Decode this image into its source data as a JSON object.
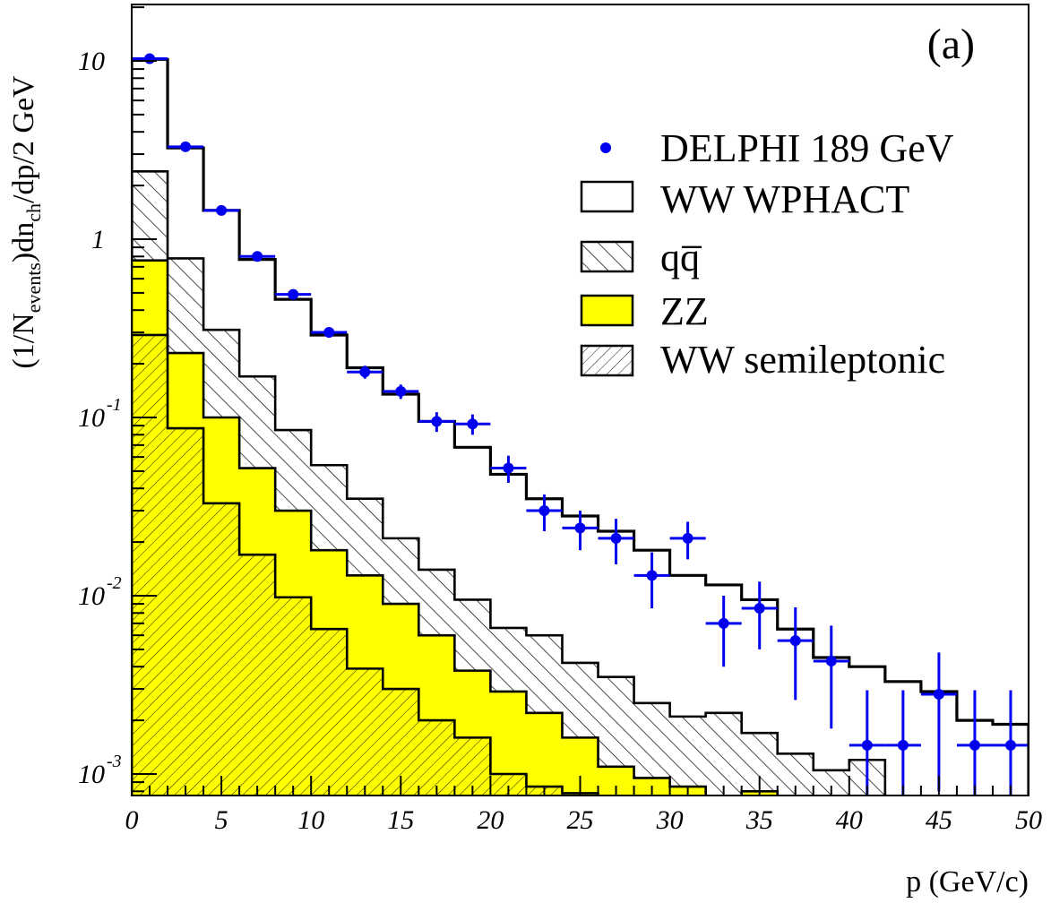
{
  "chart_data": {
    "type": "histogram",
    "panel_label": "(a)",
    "xlabel": "p (GeV/c)",
    "ylabel_parts": {
      "a": "(1/N",
      "b": "events",
      "c": ")dn",
      "d": "ch",
      "e": "/dp/2 GeV"
    },
    "xlim": [
      0,
      50
    ],
    "ylim": [
      0.00075,
      20
    ],
    "yscale": "log",
    "x_ticks": [
      0,
      5,
      10,
      15,
      20,
      25,
      30,
      35,
      40,
      45,
      50
    ],
    "y_ticks": [
      {
        "base": "10",
        "exp": ""
      },
      {
        "base": "1",
        "exp": ""
      },
      {
        "base": "10",
        "exp": "-1"
      },
      {
        "base": "10",
        "exp": "-2"
      },
      {
        "base": "10",
        "exp": "-3"
      }
    ],
    "bin_edges": [
      0,
      2,
      4,
      6,
      8,
      10,
      12,
      14,
      16,
      18,
      20,
      22,
      24,
      26,
      28,
      30,
      32,
      34,
      36,
      38,
      40,
      42,
      44,
      46,
      48,
      50
    ],
    "series": [
      {
        "name": "WW WPHACT",
        "kind": "outline",
        "color": "#000000",
        "values": [
          10.2,
          3.25,
          1.45,
          0.77,
          0.46,
          0.29,
          0.19,
          0.135,
          0.095,
          0.068,
          0.048,
          0.035,
          0.028,
          0.023,
          0.018,
          0.013,
          0.0115,
          0.0095,
          0.0065,
          0.0045,
          0.004,
          0.0033,
          0.0029,
          0.002,
          0.0019
        ]
      },
      {
        "name": "qq̅",
        "kind": "hatch-forward",
        "color": "#000000",
        "values": [
          2.4,
          0.78,
          0.31,
          0.17,
          0.085,
          0.054,
          0.035,
          0.021,
          0.014,
          0.0095,
          0.0066,
          0.006,
          0.0042,
          0.0035,
          0.0025,
          0.0021,
          0.0022,
          0.0017,
          0.0013,
          0.00105,
          0.0012,
          0.00075,
          0,
          0,
          0
        ]
      },
      {
        "name": "ZZ",
        "kind": "fill",
        "color": "#ffff00",
        "values": [
          0.76,
          0.23,
          0.1,
          0.052,
          0.03,
          0.018,
          0.013,
          0.009,
          0.006,
          0.0038,
          0.0029,
          0.0022,
          0.0016,
          0.0011,
          0.00095,
          0.00085,
          0,
          0.0008,
          0,
          0,
          0,
          0,
          0,
          0,
          0
        ]
      },
      {
        "name": "WW semileptonic",
        "kind": "hatch-back",
        "color": "#000000",
        "values": [
          0.29,
          0.087,
          0.033,
          0.017,
          0.0098,
          0.0065,
          0.0039,
          0.003,
          0.002,
          0.0016,
          0.001,
          0.00085,
          0.00078,
          0,
          0,
          0,
          0,
          0,
          0,
          0,
          0,
          0,
          0,
          0,
          0
        ]
      },
      {
        "name": "DELPHI 189 GeV",
        "kind": "points",
        "color": "#0000ee",
        "x": [
          1,
          3,
          5,
          7,
          9,
          11,
          13,
          15,
          17,
          19,
          21,
          23,
          25,
          27,
          29,
          31,
          33,
          35,
          37,
          39,
          41,
          43,
          45,
          47,
          49
        ],
        "y": [
          10.3,
          3.3,
          1.45,
          0.8,
          0.49,
          0.3,
          0.18,
          0.14,
          0.095,
          0.092,
          0.052,
          0.03,
          0.024,
          0.021,
          0.013,
          0.021,
          0.007,
          0.0085,
          0.0056,
          0.0043,
          0.00145,
          0.00145,
          0.0028,
          0.00145,
          0.00145
        ],
        "yerr": [
          0.3,
          0.12,
          0.06,
          0.04,
          0.025,
          0.02,
          0.015,
          0.013,
          0.012,
          0.012,
          0.009,
          0.007,
          0.006,
          0.006,
          0.0045,
          0.005,
          0.003,
          0.0035,
          0.003,
          0.0025,
          0.0015,
          0.0015,
          0.002,
          0.0015,
          0.0015
        ]
      }
    ],
    "legend": {
      "position": "top-right",
      "entries": [
        "DELPHI 189 GeV",
        "WW WPHACT",
        "qq̅",
        "ZZ",
        "WW semileptonic"
      ]
    }
  }
}
